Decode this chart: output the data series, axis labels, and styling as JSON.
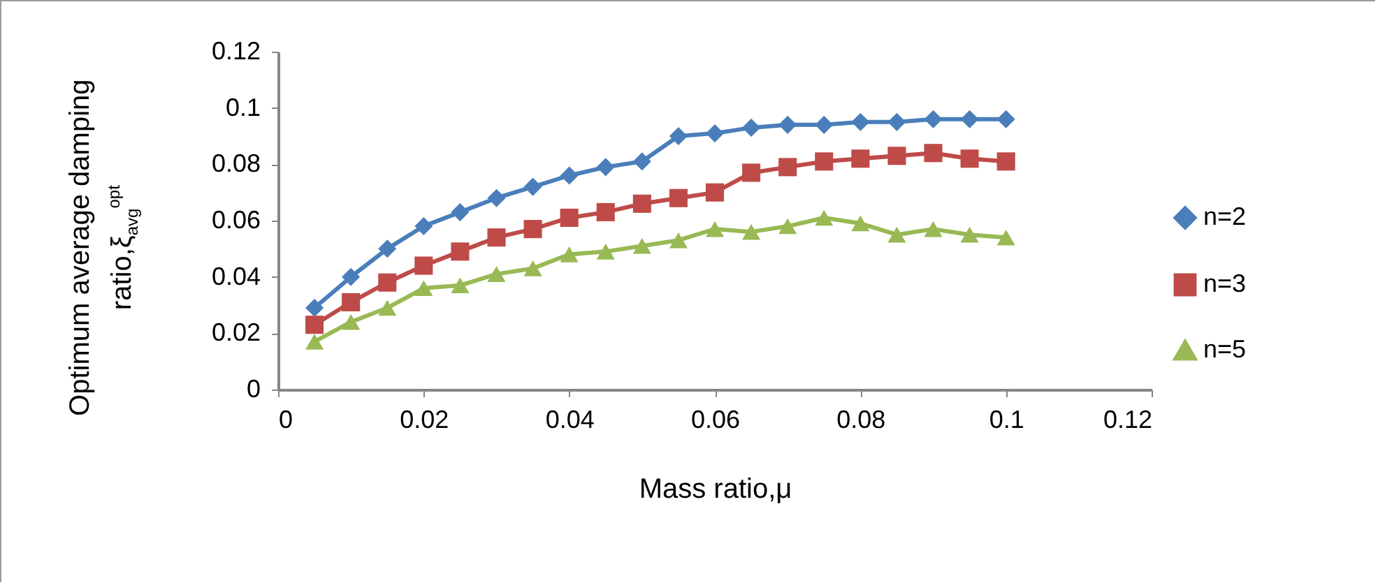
{
  "chart_data": {
    "type": "line",
    "xlabel": "Mass ratio,μ",
    "ylabel": "Optimum average damping ratio,ξ$_{avg}$$^{opt}$",
    "x": [
      0.005,
      0.01,
      0.015,
      0.02,
      0.025,
      0.03,
      0.035,
      0.04,
      0.045,
      0.05,
      0.055,
      0.06,
      0.065,
      0.07,
      0.075,
      0.08,
      0.085,
      0.09,
      0.095,
      0.1
    ],
    "xlim": [
      0,
      0.12
    ],
    "xticks": [
      0,
      0.02,
      0.04,
      0.06,
      0.08,
      0.1,
      0.12
    ],
    "ylim": [
      0,
      0.12
    ],
    "yticks": [
      0,
      0.02,
      0.04,
      0.06,
      0.08,
      0.1,
      0.12
    ],
    "grid": false,
    "legend": "right",
    "line_style": "solid",
    "series": [
      {
        "name": "n=2",
        "color": "#4a7ebb",
        "marker": "diamond",
        "values": [
          0.029,
          0.04,
          0.05,
          0.058,
          0.063,
          0.068,
          0.072,
          0.076,
          0.079,
          0.081,
          0.09,
          0.091,
          0.093,
          0.094,
          0.094,
          0.095,
          0.095,
          0.096,
          0.096,
          0.096
        ]
      },
      {
        "name": "n=3",
        "color": "#be4b48",
        "marker": "square",
        "values": [
          0.023,
          0.031,
          0.038,
          0.044,
          0.049,
          0.054,
          0.057,
          0.061,
          0.063,
          0.066,
          0.068,
          0.07,
          0.077,
          0.079,
          0.081,
          0.082,
          0.083,
          0.084,
          0.082,
          0.081
        ]
      },
      {
        "name": "n=5",
        "color": "#98b954",
        "marker": "triangle",
        "values": [
          0.017,
          0.024,
          0.029,
          0.036,
          0.037,
          0.041,
          0.043,
          0.048,
          0.049,
          0.051,
          0.053,
          0.057,
          0.056,
          0.058,
          0.061,
          0.059,
          0.055,
          0.057,
          0.055,
          0.054
        ]
      }
    ]
  }
}
